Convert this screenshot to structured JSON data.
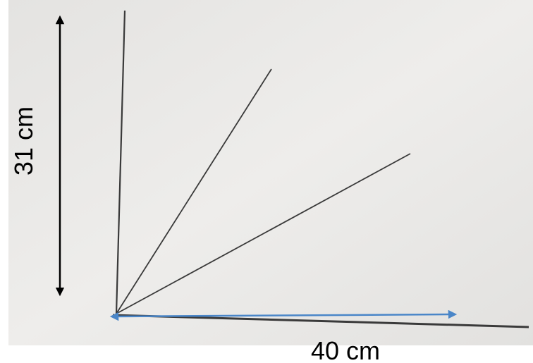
{
  "labels": {
    "height": "31 cm",
    "width": "40 cm"
  }
}
